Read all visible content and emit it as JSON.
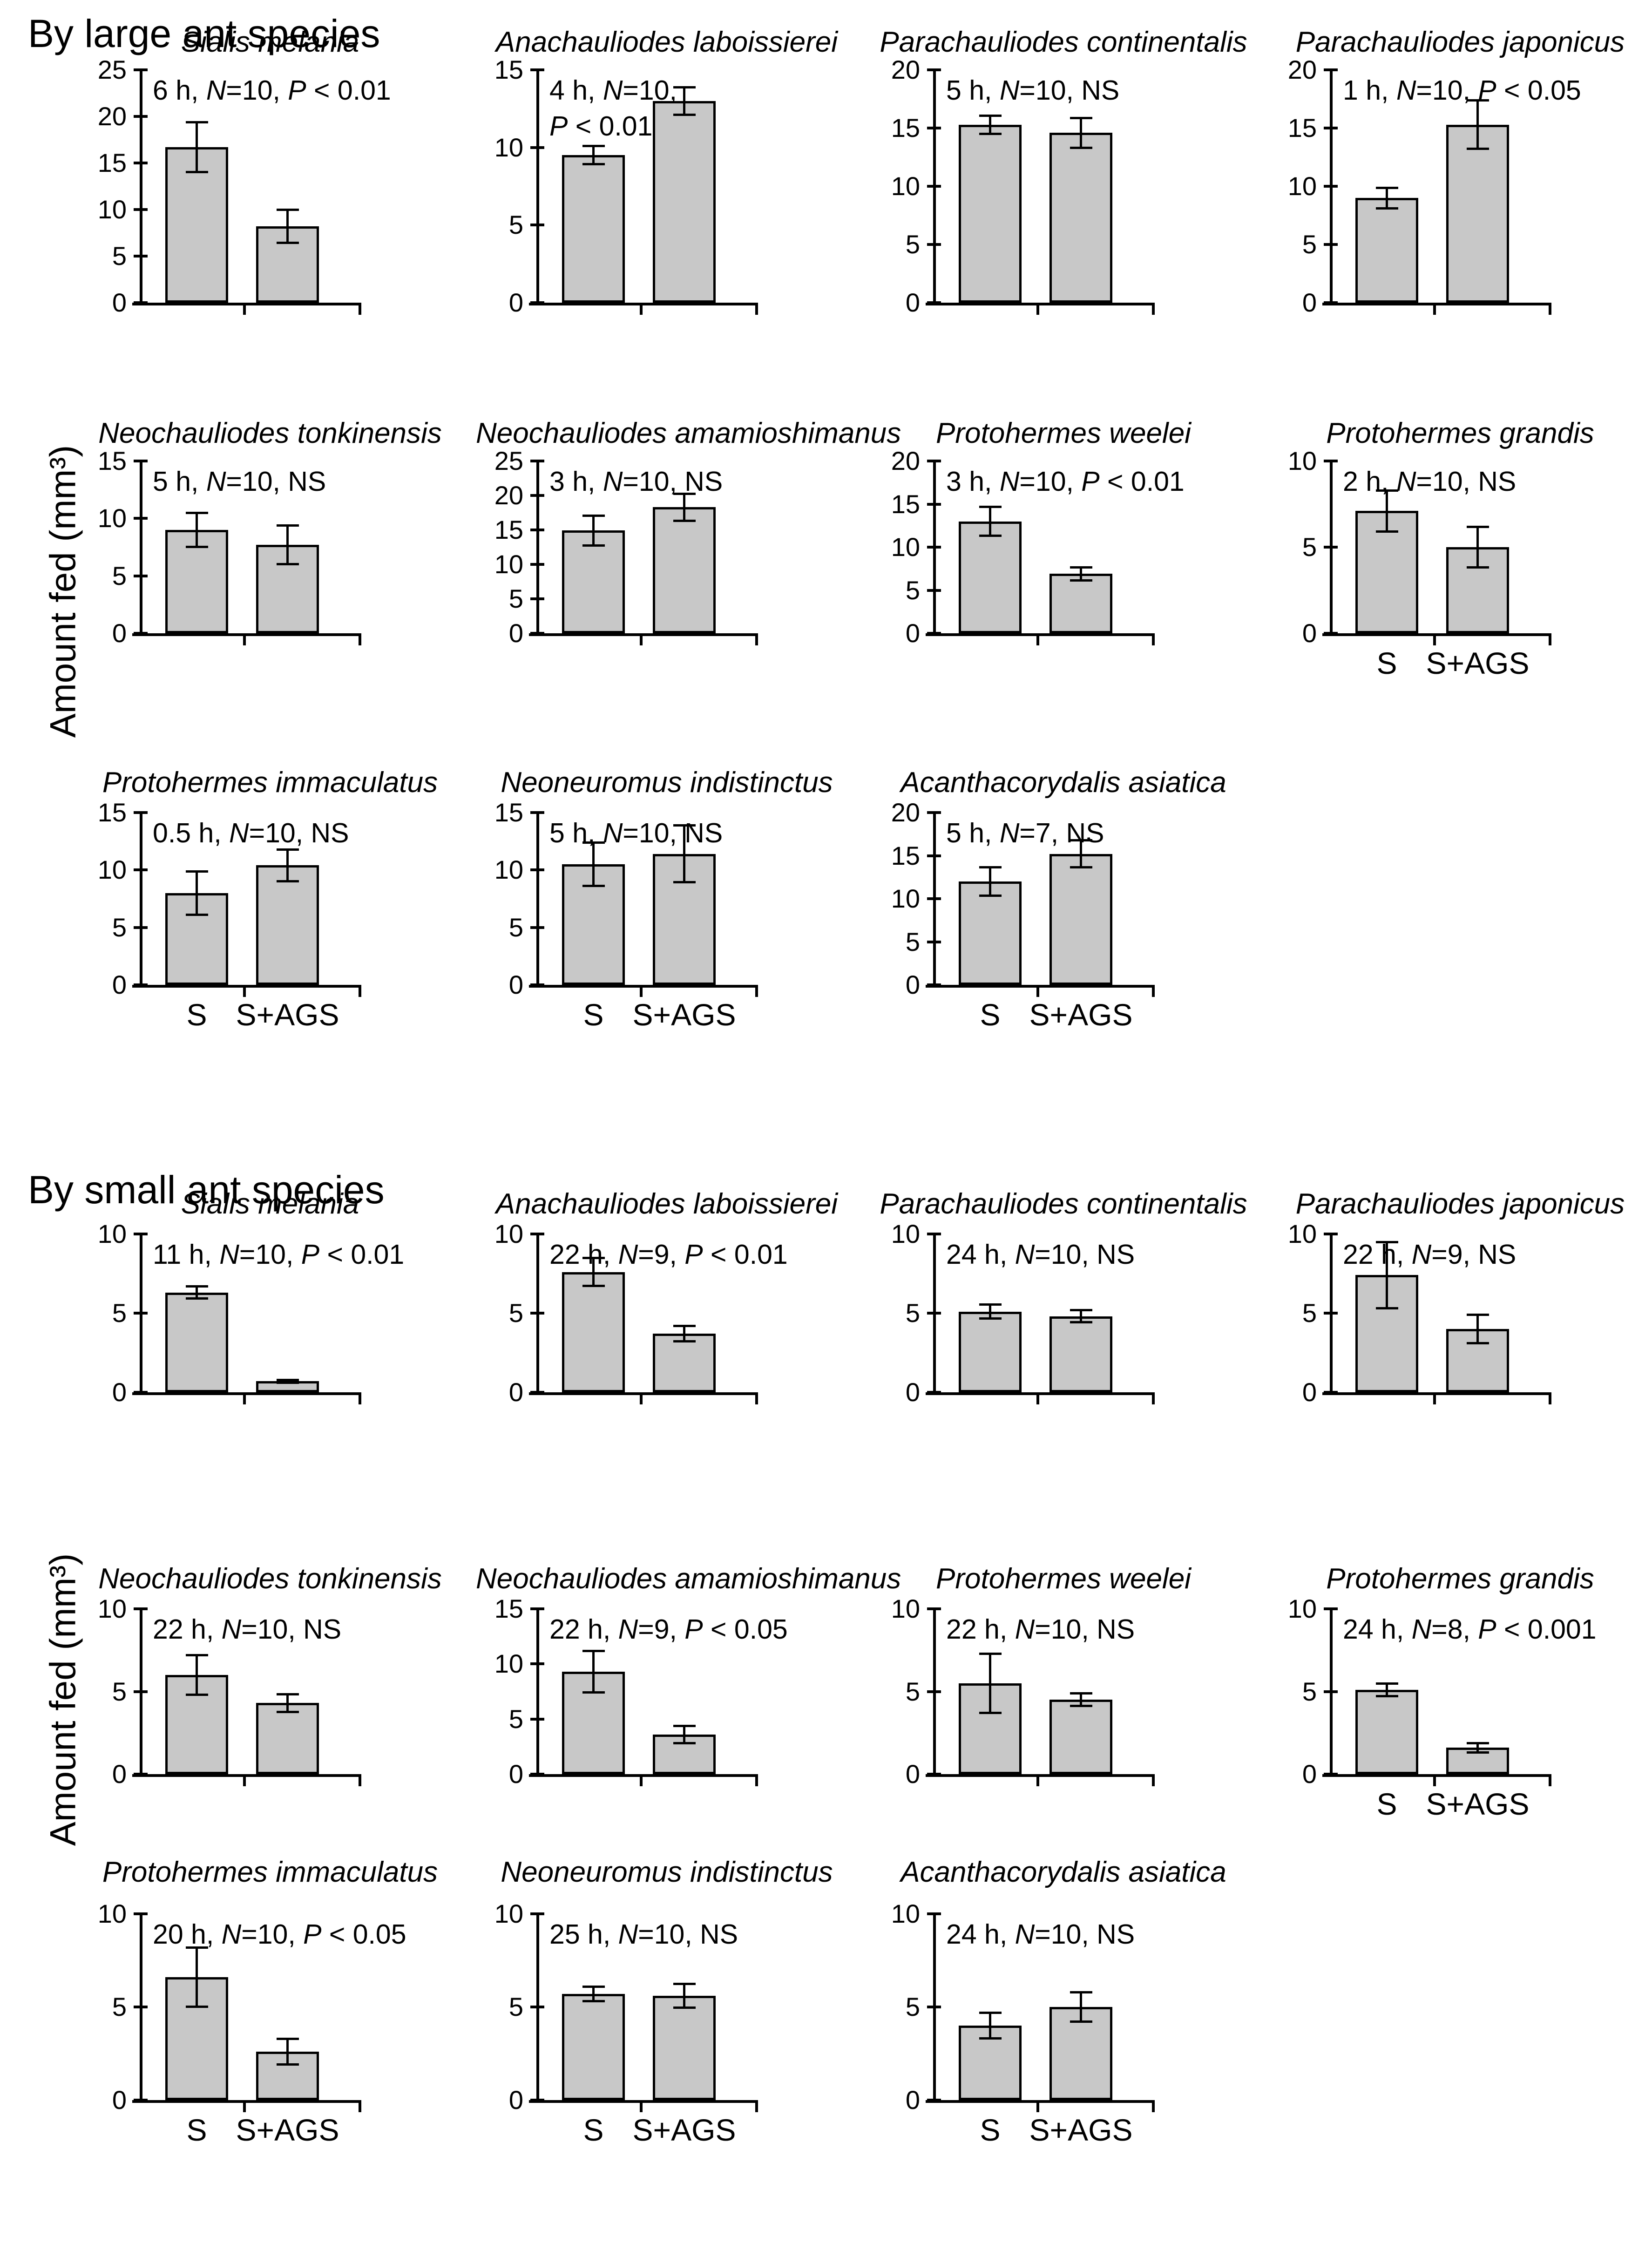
{
  "sections": [
    {
      "label": "By large ant species",
      "ylabel": "Amount fed (mm³)"
    },
    {
      "label": "By small ant species",
      "ylabel": "Amount fed (mm³)"
    }
  ],
  "x_categories": [
    "S",
    "S+AGS"
  ],
  "chart_data": [
    {
      "type": "bar",
      "section": 0,
      "row": 0,
      "col": 0,
      "title": "Sialis melania",
      "annotation": "6 h, N=10, P < 0.01",
      "ylim": 25,
      "yticks": [
        0,
        5,
        10,
        15,
        20,
        25
      ],
      "categories": [
        "S",
        "S+AGS"
      ],
      "values": [
        16.7,
        8.2
      ],
      "errors": [
        2.7,
        1.8
      ],
      "show_x_labels": false
    },
    {
      "type": "bar",
      "section": 0,
      "row": 0,
      "col": 1,
      "title": "Anachauliodes laboissierei",
      "annotation": "4 h, N=10,\nP < 0.01",
      "ylim": 15,
      "yticks": [
        0,
        5,
        10,
        15
      ],
      "categories": [
        "S",
        "S+AGS"
      ],
      "values": [
        9.5,
        13.0
      ],
      "errors": [
        0.6,
        0.9
      ],
      "show_x_labels": false
    },
    {
      "type": "bar",
      "section": 0,
      "row": 0,
      "col": 2,
      "title": "Parachauliodes continentalis",
      "annotation": "5 h, N=10, NS",
      "ylim": 20,
      "yticks": [
        0,
        5,
        10,
        15,
        20
      ],
      "categories": [
        "S",
        "S+AGS"
      ],
      "values": [
        15.3,
        14.6
      ],
      "errors": [
        0.8,
        1.3
      ],
      "show_x_labels": false
    },
    {
      "type": "bar",
      "section": 0,
      "row": 0,
      "col": 3,
      "title": "Parachauliodes japonicus",
      "annotation": "1 h, N=10, P < 0.05",
      "ylim": 20,
      "yticks": [
        0,
        5,
        10,
        15,
        20
      ],
      "categories": [
        "S",
        "S+AGS"
      ],
      "values": [
        9.0,
        15.3
      ],
      "errors": [
        0.9,
        2.1
      ],
      "show_x_labels": false
    },
    {
      "type": "bar",
      "section": 0,
      "row": 1,
      "col": 0,
      "title": "Neochauliodes tonkinensis",
      "annotation": "5 h, N=10, NS",
      "ylim": 15,
      "yticks": [
        0,
        5,
        10,
        15
      ],
      "categories": [
        "S",
        "S+AGS"
      ],
      "values": [
        9.0,
        7.7
      ],
      "errors": [
        1.5,
        1.7
      ],
      "show_x_labels": false
    },
    {
      "type": "bar",
      "section": 0,
      "row": 1,
      "col": 1,
      "title": "Neochauliodes amamioshimanus",
      "annotation": "3 h, N=10, NS",
      "ylim": 25,
      "yticks": [
        0,
        5,
        10,
        15,
        20,
        25
      ],
      "categories": [
        "S",
        "S+AGS"
      ],
      "values": [
        14.9,
        18.3
      ],
      "errors": [
        2.2,
        2.0
      ],
      "show_x_labels": false
    },
    {
      "type": "bar",
      "section": 0,
      "row": 1,
      "col": 2,
      "title": "Protohermes weelei",
      "annotation": "3 h, N=10, P < 0.01",
      "ylim": 20,
      "yticks": [
        0,
        5,
        10,
        15,
        20
      ],
      "categories": [
        "S",
        "S+AGS"
      ],
      "values": [
        13.0,
        6.9
      ],
      "errors": [
        1.7,
        0.8
      ],
      "show_x_labels": false
    },
    {
      "type": "bar",
      "section": 0,
      "row": 1,
      "col": 3,
      "title": "Protohermes grandis",
      "annotation": "2 h, N=10, NS",
      "ylim": 10,
      "yticks": [
        0,
        5,
        10
      ],
      "categories": [
        "S",
        "S+AGS"
      ],
      "values": [
        7.1,
        5.0
      ],
      "errors": [
        1.2,
        1.2
      ],
      "show_x_labels": true
    },
    {
      "type": "bar",
      "section": 0,
      "row": 2,
      "col": 0,
      "title": "Protohermes immaculatus",
      "annotation": "0.5 h, N=10, NS",
      "ylim": 15,
      "yticks": [
        0,
        5,
        10,
        15
      ],
      "categories": [
        "S",
        "S+AGS"
      ],
      "values": [
        8.0,
        10.4
      ],
      "errors": [
        1.9,
        1.4
      ],
      "show_x_labels": true
    },
    {
      "type": "bar",
      "section": 0,
      "row": 2,
      "col": 1,
      "title": "Neoneuromus indistinctus",
      "annotation": "5 h, N=10, NS",
      "ylim": 15,
      "yticks": [
        0,
        5,
        10,
        15
      ],
      "categories": [
        "S",
        "S+AGS"
      ],
      "values": [
        10.5,
        11.4
      ],
      "errors": [
        1.9,
        2.5
      ],
      "show_x_labels": true
    },
    {
      "type": "bar",
      "section": 0,
      "row": 2,
      "col": 2,
      "title": "Acanthacorydalis asiatica",
      "annotation": "5 h, N=7, NS",
      "ylim": 20,
      "yticks": [
        0,
        5,
        10,
        15,
        20
      ],
      "categories": [
        "S",
        "S+AGS"
      ],
      "values": [
        12.0,
        15.2
      ],
      "errors": [
        1.7,
        1.6
      ],
      "show_x_labels": true
    },
    {
      "type": "bar",
      "section": 1,
      "row": 0,
      "col": 0,
      "title": "Sialis melania",
      "annotation": "11 h, N=10, P < 0.01",
      "ylim": 10,
      "yticks": [
        0,
        5,
        10
      ],
      "categories": [
        "S",
        "S+AGS"
      ],
      "values": [
        6.3,
        0.7
      ],
      "errors": [
        0.4,
        0.1
      ],
      "show_x_labels": false
    },
    {
      "type": "bar",
      "section": 1,
      "row": 0,
      "col": 1,
      "title": "Anachauliodes laboissierei",
      "annotation": "22 h, N=9, P < 0.01",
      "ylim": 10,
      "yticks": [
        0,
        5,
        10
      ],
      "categories": [
        "S",
        "S+AGS"
      ],
      "values": [
        7.6,
        3.7
      ],
      "errors": [
        0.9,
        0.5
      ],
      "show_x_labels": false
    },
    {
      "type": "bar",
      "section": 1,
      "row": 0,
      "col": 2,
      "title": "Parachauliodes continentalis",
      "annotation": "24 h, N=10, NS",
      "ylim": 10,
      "yticks": [
        0,
        5,
        10
      ],
      "categories": [
        "S",
        "S+AGS"
      ],
      "values": [
        5.1,
        4.8
      ],
      "errors": [
        0.45,
        0.4
      ],
      "show_x_labels": false
    },
    {
      "type": "bar",
      "section": 1,
      "row": 0,
      "col": 3,
      "title": "Parachauliodes japonicus",
      "annotation": "22 h, N=9, NS",
      "ylim": 10,
      "yticks": [
        0,
        5,
        10
      ],
      "categories": [
        "S",
        "S+AGS"
      ],
      "values": [
        7.4,
        4.0
      ],
      "errors": [
        2.1,
        0.9
      ],
      "show_x_labels": false
    },
    {
      "type": "bar",
      "section": 1,
      "row": 1,
      "col": 0,
      "title": "Neochauliodes tonkinensis",
      "annotation": "22 h, N=10, NS",
      "ylim": 10,
      "yticks": [
        0,
        5,
        10
      ],
      "categories": [
        "S",
        "S+AGS"
      ],
      "values": [
        6.0,
        4.3
      ],
      "errors": [
        1.2,
        0.55
      ],
      "show_x_labels": false
    },
    {
      "type": "bar",
      "section": 1,
      "row": 1,
      "col": 1,
      "title": "Neochauliodes amamioshimanus",
      "annotation": "22 h, N=9, P < 0.05",
      "ylim": 15,
      "yticks": [
        0,
        5,
        10,
        15
      ],
      "categories": [
        "S",
        "S+AGS"
      ],
      "values": [
        9.3,
        3.6
      ],
      "errors": [
        1.9,
        0.8
      ],
      "show_x_labels": false
    },
    {
      "type": "bar",
      "section": 1,
      "row": 1,
      "col": 2,
      "title": "Protohermes weelei",
      "annotation": "22 h, N=10, NS",
      "ylim": 10,
      "yticks": [
        0,
        5,
        10
      ],
      "categories": [
        "S",
        "S+AGS"
      ],
      "values": [
        5.5,
        4.5
      ],
      "errors": [
        1.8,
        0.4
      ],
      "show_x_labels": false
    },
    {
      "type": "bar",
      "section": 1,
      "row": 1,
      "col": 3,
      "title": "Protohermes grandis",
      "annotation": "24 h, N=8, P < 0.001",
      "ylim": 10,
      "yticks": [
        0,
        5,
        10
      ],
      "categories": [
        "S",
        "S+AGS"
      ],
      "values": [
        5.1,
        1.6
      ],
      "errors": [
        0.4,
        0.3
      ],
      "show_x_labels": true
    },
    {
      "type": "bar",
      "section": 1,
      "row": 2,
      "col": 0,
      "title": "Protohermes immaculatus",
      "annotation": "20 h, N=10, P < 0.05",
      "ylim": 10,
      "yticks": [
        0,
        5,
        10
      ],
      "categories": [
        "S",
        "S+AGS"
      ],
      "values": [
        6.6,
        2.6
      ],
      "errors": [
        1.6,
        0.7
      ],
      "show_x_labels": true
    },
    {
      "type": "bar",
      "section": 1,
      "row": 2,
      "col": 1,
      "title": "Neoneuromus indistinctus",
      "annotation": "25 h, N=10, NS",
      "ylim": 10,
      "yticks": [
        0,
        5,
        10
      ],
      "categories": [
        "S",
        "S+AGS"
      ],
      "values": [
        5.7,
        5.6
      ],
      "errors": [
        0.4,
        0.65
      ],
      "show_x_labels": true
    },
    {
      "type": "bar",
      "section": 1,
      "row": 2,
      "col": 2,
      "title": "Acanthacorydalis asiatica",
      "annotation": "24 h, N=10, NS",
      "ylim": 10,
      "yticks": [
        0,
        5,
        10
      ],
      "categories": [
        "S",
        "S+AGS"
      ],
      "values": [
        4.0,
        5.0
      ],
      "errors": [
        0.7,
        0.8
      ],
      "show_x_labels": true
    }
  ]
}
